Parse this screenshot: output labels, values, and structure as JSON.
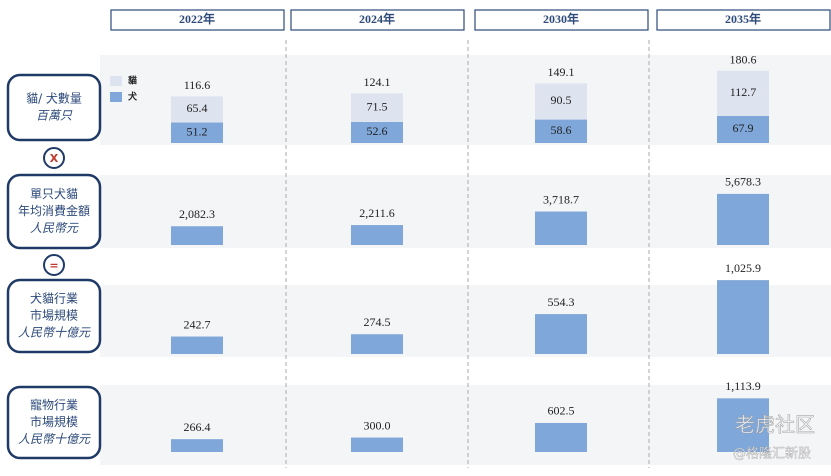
{
  "chart_data": [
    {
      "type": "stacked_bar",
      "title": [
        "貓/ 犬數量"
      ],
      "subtitle": "百萬只",
      "categories": [
        "2022年",
        "2024年",
        "2030年",
        "2035年"
      ],
      "series": [
        {
          "name": "貓",
          "color": "#dde3ef",
          "values": [
            65.4,
            71.5,
            90.5,
            112.7
          ]
        },
        {
          "name": "犬",
          "color": "#7fa7d9",
          "values": [
            51.2,
            52.6,
            58.6,
            67.9
          ]
        }
      ],
      "totals": [
        116.6,
        124.1,
        149.1,
        180.6
      ],
      "ylim": [
        0,
        180
      ]
    },
    {
      "type": "bar",
      "title": [
        "單只犬貓",
        "年均消費金額"
      ],
      "subtitle": "人民幣元",
      "color": "#7fa7d9",
      "values": [
        2082.3,
        2211.6,
        3718.7,
        5678.3
      ],
      "value_labels": [
        "2,082.3",
        "2,211.6",
        "3,718.7",
        "5,678.3"
      ],
      "ylim": [
        0,
        6000
      ]
    },
    {
      "type": "bar",
      "title": [
        "犬貓行業",
        "市場規模"
      ],
      "subtitle": "人民幣十億元",
      "color": "#7fa7d9",
      "values": [
        242.7,
        274.5,
        554.3,
        1025.9
      ],
      "value_labels": [
        "242.7",
        "274.5",
        "554.3",
        "1,025.9"
      ],
      "ylim": [
        0,
        1000
      ]
    },
    {
      "type": "bar",
      "title": [
        "寵物行業",
        "市場規模"
      ],
      "subtitle": "人民幣十億元",
      "color": "#7fa7d9",
      "values": [
        266.4,
        300.0,
        602.5,
        1113.9
      ],
      "value_labels": [
        "266.4",
        "300.0",
        "602.5",
        "1,113.9"
      ],
      "ylim": [
        0,
        1100
      ]
    }
  ],
  "operators": [
    "X",
    "="
  ],
  "watermark": {
    "brand": "老虎社区",
    "handle": "@格隆汇新股"
  }
}
